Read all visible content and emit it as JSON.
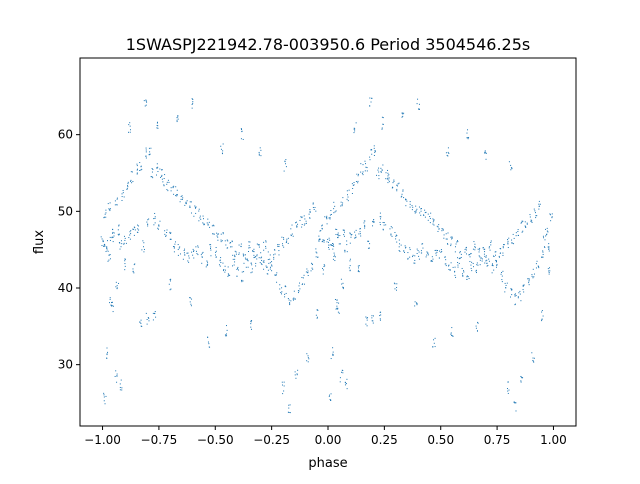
{
  "chart_data": {
    "type": "scatter",
    "title": "1SWASPJ221942.78-003950.6 Period 3504546.25s",
    "xlabel": "phase",
    "ylabel": "flux",
    "xlim": [
      -1.1,
      1.1
    ],
    "ylim": [
      22,
      70
    ],
    "xticks": [
      -1.0,
      -0.75,
      -0.5,
      -0.25,
      0.0,
      0.25,
      0.5,
      0.75,
      1.0
    ],
    "xtick_labels": [
      "−1.00",
      "−0.75",
      "−0.50",
      "−0.25",
      "0.00",
      "0.25",
      "0.50",
      "0.75",
      "1.00"
    ],
    "yticks": [
      30,
      40,
      50,
      60
    ],
    "ytick_labels": [
      "30",
      "40",
      "50",
      "60"
    ],
    "marker_color": "#1f77b4",
    "grid": false,
    "legend": "none",
    "series": [
      {
        "description_points": "phase-folded light curve; points repeat with period 1 in phase",
        "values": [
          [
            -1.0,
            46.0
          ],
          [
            -0.99,
            49.5
          ],
          [
            -0.98,
            45.5
          ],
          [
            -0.97,
            50.5
          ],
          [
            -0.96,
            47.0
          ],
          [
            -0.95,
            46.5
          ],
          [
            -0.94,
            51.0
          ],
          [
            -0.93,
            47.5
          ],
          [
            -0.92,
            45.5
          ],
          [
            -0.91,
            52.0
          ],
          [
            -0.9,
            46.5
          ],
          [
            -0.89,
            53.0
          ],
          [
            -0.88,
            47.0
          ],
          [
            -0.87,
            54.5
          ],
          [
            -0.86,
            47.5
          ],
          [
            -0.85,
            55.5
          ],
          [
            -0.84,
            48.0
          ],
          [
            -0.83,
            56.0
          ],
          [
            -0.82,
            45.5
          ],
          [
            -0.81,
            57.5
          ],
          [
            -0.8,
            48.5
          ],
          [
            -0.79,
            58.0
          ],
          [
            -0.78,
            55.0
          ],
          [
            -0.77,
            49.0
          ],
          [
            -0.76,
            55.5
          ],
          [
            -0.75,
            48.0
          ],
          [
            -0.74,
            55.0
          ],
          [
            -0.73,
            54.0
          ],
          [
            -0.72,
            47.5
          ],
          [
            -0.71,
            53.5
          ],
          [
            -0.7,
            46.5
          ],
          [
            -0.69,
            53.0
          ],
          [
            -0.68,
            45.5
          ],
          [
            -0.67,
            52.5
          ],
          [
            -0.66,
            45.0
          ],
          [
            -0.65,
            51.5
          ],
          [
            -0.64,
            44.5
          ],
          [
            -0.63,
            51.0
          ],
          [
            -0.62,
            44.0
          ],
          [
            -0.61,
            50.5
          ],
          [
            -0.6,
            44.5
          ],
          [
            -0.59,
            50.0
          ],
          [
            -0.58,
            45.0
          ],
          [
            -0.57,
            49.5
          ],
          [
            -0.56,
            44.0
          ],
          [
            -0.55,
            49.0
          ],
          [
            -0.54,
            43.5
          ],
          [
            -0.53,
            48.5
          ],
          [
            -0.52,
            45.0
          ],
          [
            -0.51,
            47.5
          ],
          [
            -0.5,
            44.5
          ],
          [
            -0.49,
            47.0
          ],
          [
            -0.48,
            43.5
          ],
          [
            -0.47,
            46.5
          ],
          [
            -0.46,
            42.5
          ],
          [
            -0.45,
            46.0
          ],
          [
            -0.44,
            42.0
          ],
          [
            -0.43,
            45.5
          ],
          [
            -0.42,
            43.5
          ],
          [
            -0.41,
            44.5
          ],
          [
            -0.4,
            42.0
          ],
          [
            -0.39,
            45.0
          ],
          [
            -0.38,
            41.5
          ],
          [
            -0.37,
            44.0
          ],
          [
            -0.36,
            43.0
          ],
          [
            -0.35,
            45.5
          ],
          [
            -0.34,
            42.5
          ],
          [
            -0.33,
            44.5
          ],
          [
            -0.32,
            43.5
          ],
          [
            -0.31,
            45.0
          ],
          [
            -0.3,
            44.0
          ],
          [
            -0.29,
            43.0
          ],
          [
            -0.28,
            45.5
          ],
          [
            -0.27,
            42.5
          ],
          [
            -0.26,
            44.0
          ],
          [
            -0.25,
            43.0
          ],
          [
            -0.24,
            44.5
          ],
          [
            -0.23,
            41.5
          ],
          [
            -0.22,
            45.0
          ],
          [
            -0.21,
            40.0
          ],
          [
            -0.2,
            46.0
          ],
          [
            -0.19,
            39.5
          ],
          [
            -0.18,
            46.5
          ],
          [
            -0.17,
            38.5
          ],
          [
            -0.16,
            47.5
          ],
          [
            -0.15,
            39.0
          ],
          [
            -0.14,
            48.0
          ],
          [
            -0.13,
            40.0
          ],
          [
            -0.12,
            48.5
          ],
          [
            -0.11,
            41.0
          ],
          [
            -0.1,
            49.0
          ],
          [
            -0.09,
            42.0
          ],
          [
            -0.08,
            49.5
          ],
          [
            -0.07,
            43.0
          ],
          [
            -0.06,
            50.5
          ],
          [
            -0.05,
            44.5
          ],
          [
            -0.04,
            46.0
          ],
          [
            -0.03,
            47.5
          ],
          [
            -0.02,
            45.5
          ],
          [
            -0.01,
            49.0
          ],
          [
            -0.965,
            38.0
          ],
          [
            -0.955,
            37.5
          ],
          [
            -0.935,
            40.5
          ],
          [
            -0.98,
            31.5
          ],
          [
            -0.9,
            43.0
          ],
          [
            -0.86,
            42.5
          ],
          [
            -0.8,
            36.0
          ],
          [
            -0.77,
            36.5
          ],
          [
            -0.83,
            35.5
          ],
          [
            -0.92,
            27.5
          ],
          [
            -0.94,
            28.5
          ],
          [
            -0.81,
            64.5
          ],
          [
            -0.76,
            61.5
          ],
          [
            -0.88,
            61.0
          ],
          [
            -0.67,
            62.5
          ],
          [
            -0.6,
            64.0
          ],
          [
            -0.47,
            58.0
          ],
          [
            -0.38,
            60.0
          ],
          [
            -0.3,
            57.5
          ],
          [
            -0.19,
            56.0
          ],
          [
            -0.17,
            24.5
          ],
          [
            -0.2,
            27.0
          ],
          [
            -0.14,
            28.5
          ],
          [
            -0.09,
            31.0
          ],
          [
            -0.05,
            36.5
          ],
          [
            -0.02,
            42.5
          ],
          [
            -0.34,
            35.0
          ],
          [
            -0.45,
            34.5
          ],
          [
            -0.53,
            33.0
          ],
          [
            -0.61,
            38.0
          ],
          [
            -0.7,
            40.5
          ],
          [
            -0.99,
            45.5
          ],
          [
            -0.97,
            44.0
          ],
          [
            -0.99,
            25.5
          ]
        ]
      }
    ]
  }
}
